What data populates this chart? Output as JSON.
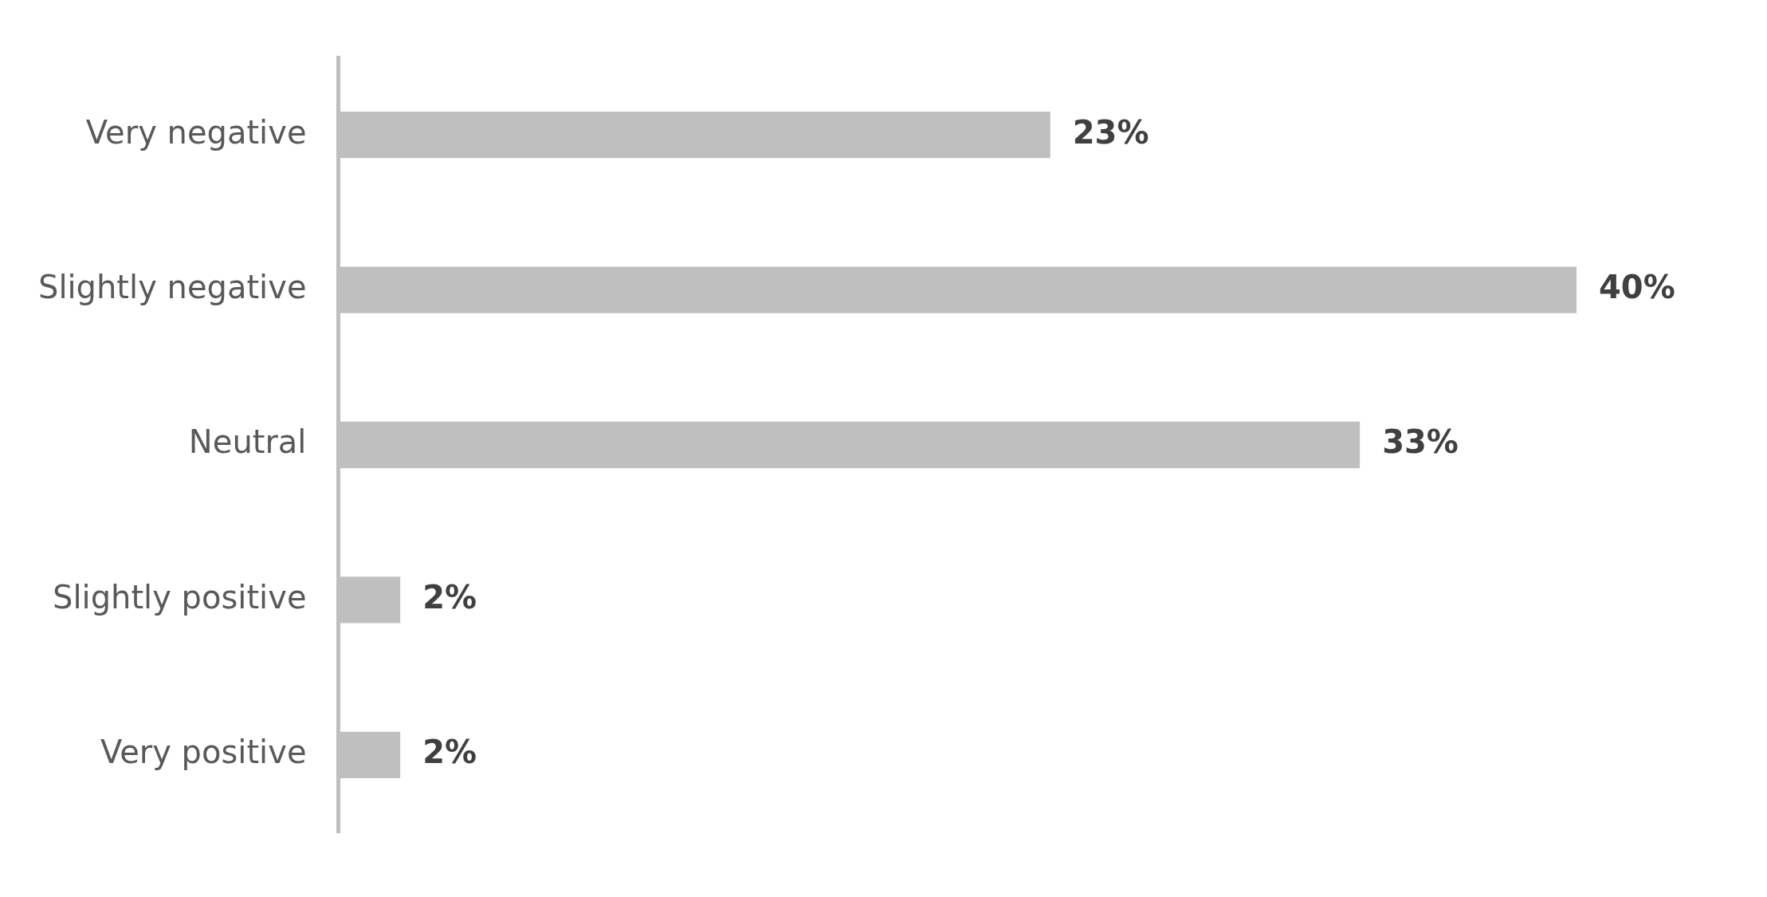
{
  "chart_data": {
    "type": "bar",
    "orientation": "horizontal",
    "categories": [
      "Very negative",
      "Slightly negative",
      "Neutral",
      "Slightly positive",
      "Very positive"
    ],
    "values": [
      23,
      40,
      33,
      2,
      2
    ],
    "value_labels": [
      "23%",
      "40%",
      "33%",
      "2%",
      "2%"
    ],
    "color": "#bfbfbf",
    "tick_labels": "y",
    "grid": false,
    "legend": false
  }
}
